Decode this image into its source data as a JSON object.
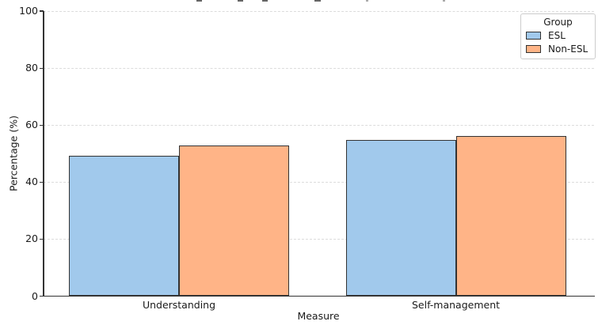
{
  "chart_data": {
    "type": "bar",
    "categories": [
      "Understanding",
      "Self-management"
    ],
    "series": [
      {
        "name": "ESL",
        "color": "#a1c9ec",
        "values": [
          49.2,
          54.7
        ]
      },
      {
        "name": "Non-ESL",
        "color": "#ffb487",
        "values": [
          52.8,
          56.1
        ]
      }
    ],
    "title": "",
    "xlabel": "Measure",
    "ylabel": "Percentage (%)",
    "ylim": [
      0,
      100
    ],
    "yticks": [
      0,
      20,
      40,
      60,
      80,
      100
    ],
    "grid": "horizontal-dashed",
    "legend": {
      "title": "Group",
      "position": "upper-right"
    },
    "bar_edge_color": "#333333"
  }
}
